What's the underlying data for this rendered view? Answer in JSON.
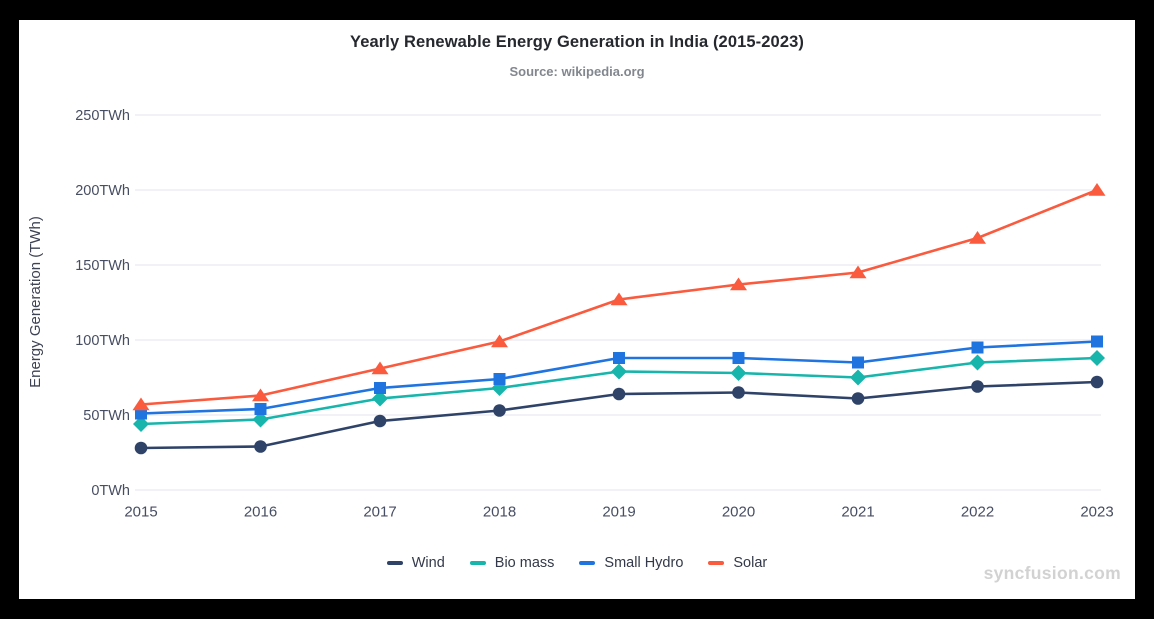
{
  "window": {
    "background": "#000000",
    "watermark": "syncfusion.com"
  },
  "chart_data": {
    "type": "line",
    "title": "Yearly Renewable Energy Generation in India (2015-2023)",
    "subtitle": "Source: wikipedia.org",
    "xlabel": "",
    "ylabel": "Energy Generation (TWh)",
    "x": [
      2015,
      2016,
      2017,
      2018,
      2019,
      2020,
      2021,
      2022,
      2023
    ],
    "series": [
      {
        "name": "Wind",
        "marker": "circle",
        "color": "#2f4369",
        "values": [
          28,
          29,
          46,
          53,
          64,
          65,
          61,
          69,
          72
        ]
      },
      {
        "name": "Bio mass",
        "marker": "diamond",
        "color": "#17b5ab",
        "values": [
          44,
          47,
          61,
          68,
          79,
          78,
          75,
          85,
          88
        ]
      },
      {
        "name": "Small Hydro",
        "marker": "square",
        "color": "#1f74e0",
        "values": [
          51,
          54,
          68,
          74,
          88,
          88,
          85,
          95,
          99
        ]
      },
      {
        "name": "Solar",
        "marker": "triangle",
        "color": "#fa5a3d",
        "values": [
          57,
          63,
          81,
          99,
          127,
          137,
          145,
          168,
          200
        ]
      }
    ],
    "ylim": [
      0,
      250
    ],
    "yticks": [
      0,
      50,
      100,
      150,
      200,
      250
    ],
    "ytick_format": "{v}TWh",
    "grid": "horizontal-only",
    "legend_position": "bottom"
  },
  "colors": {
    "plot_background": "#ffffff",
    "gridline": "#edeef4",
    "tick_label": "#474e63",
    "axis_title": "#3e4354",
    "title": "#25282e",
    "subtitle": "#82878f",
    "legend_label": "#33394a",
    "watermark": "#d2d2d2"
  }
}
